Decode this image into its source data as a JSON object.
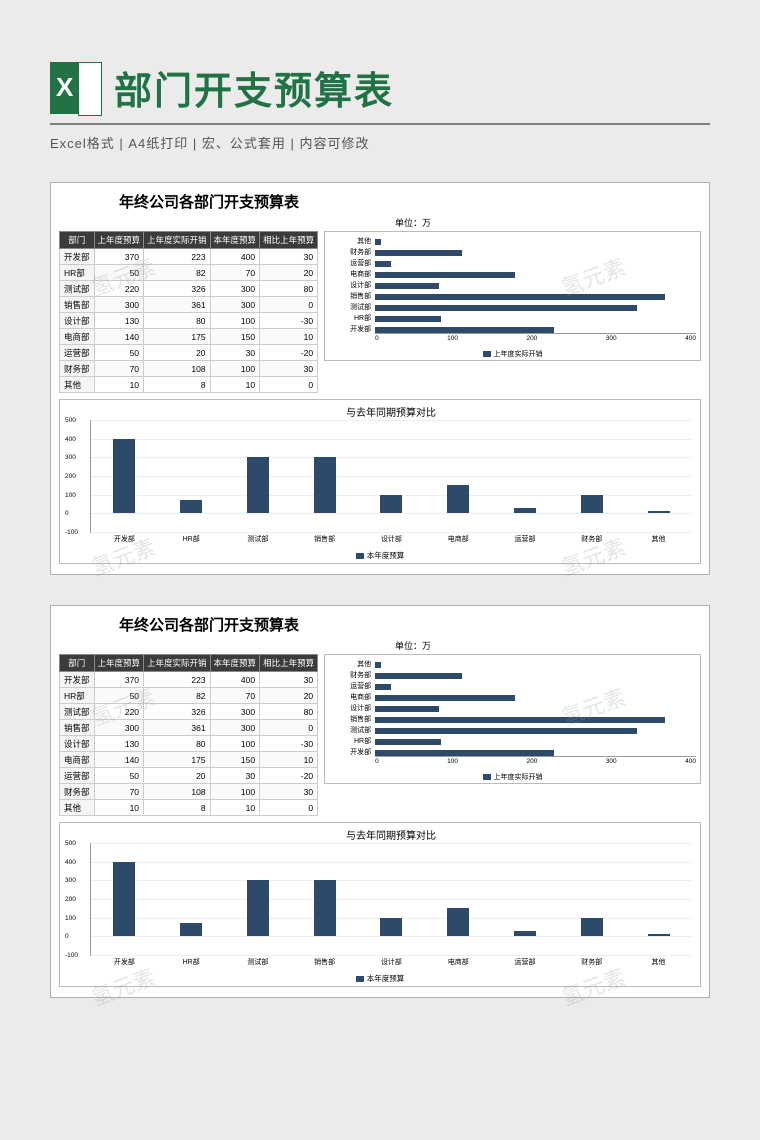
{
  "header": {
    "title": "部门开支预算表",
    "features": "Excel格式 |  A4纸打印 |  宏、公式套用 |  内容可修改"
  },
  "sheet": {
    "title": "年终公司各部门开支预算表",
    "unit": "单位：万",
    "columns": [
      "部门",
      "上年度预算",
      "上年度实际开销",
      "本年度预算",
      "相比上年预算"
    ],
    "rows": [
      {
        "dept": "开发部",
        "prev": 370,
        "actual": 223,
        "cur": 400,
        "diff": 30
      },
      {
        "dept": "HR部",
        "prev": 50,
        "actual": 82,
        "cur": 70,
        "diff": 20
      },
      {
        "dept": "测试部",
        "prev": 220,
        "actual": 326,
        "cur": 300,
        "diff": 80
      },
      {
        "dept": "销售部",
        "prev": 300,
        "actual": 361,
        "cur": 300,
        "diff": 0
      },
      {
        "dept": "设计部",
        "prev": 130,
        "actual": 80,
        "cur": 100,
        "diff": -30
      },
      {
        "dept": "电商部",
        "prev": 140,
        "actual": 175,
        "cur": 150,
        "diff": 10
      },
      {
        "dept": "运营部",
        "prev": 50,
        "actual": 20,
        "cur": 30,
        "diff": -20
      },
      {
        "dept": "财务部",
        "prev": 70,
        "actual": 108,
        "cur": 100,
        "diff": 30
      },
      {
        "dept": "其他",
        "prev": 10,
        "actual": 8,
        "cur": 10,
        "diff": 0
      }
    ],
    "hbar": {
      "legend": "上年度实际开销",
      "xmax": 400,
      "xticks": [
        0,
        100,
        200,
        300,
        400
      ],
      "bar_color": "#2e4a6b"
    },
    "vbar": {
      "title": "与去年同期预算对比",
      "legend": "本年度预算",
      "ymin": -100,
      "ymax": 500,
      "ystep": 100,
      "bar_color": "#2e4a6b"
    }
  },
  "watermark": "氢元素",
  "colors": {
    "page_bg": "#ebebeb",
    "sheet_bg": "#ffffff",
    "brand": "#217346",
    "th_bg": "#3b3b3b",
    "bar": "#2e4a6b",
    "grid": "#eeeeee",
    "border": "#bbbbbb"
  }
}
